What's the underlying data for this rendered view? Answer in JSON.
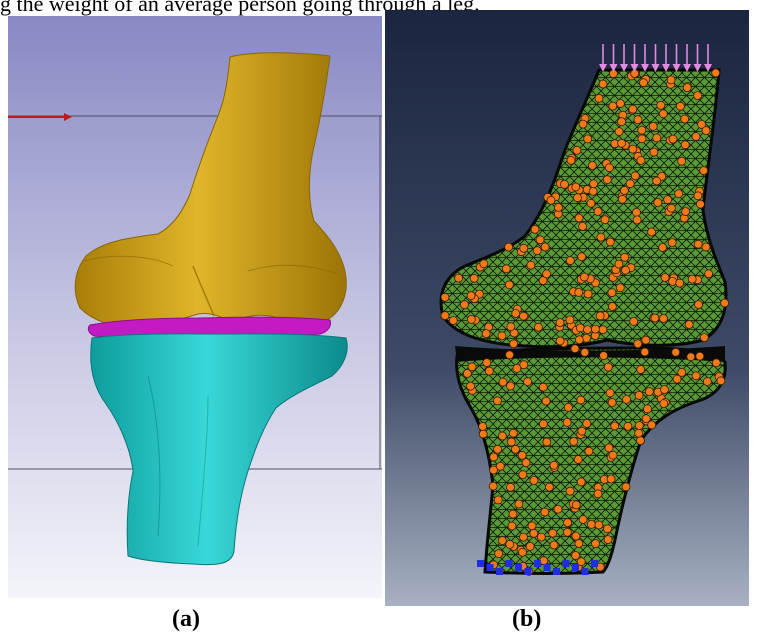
{
  "caption_top": "g the weight of an average person going through a leg.",
  "labels": {
    "a": "(a)",
    "b": "(b)"
  },
  "colors": {
    "panel_a_bg_top": "#8e8ec6",
    "panel_a_bg_bottom": "#f5f5fa",
    "femur": "#d4a712",
    "meniscus": "#c41ac4",
    "tibia": "#20c8c8",
    "panel_b_bg_top": "#1c2640",
    "panel_b_bg_bottom": "#a4aec0",
    "mesh": "#4f8f2c",
    "node": "#f07a18",
    "load_arrow": "#e08ae0",
    "boundary": "#1e2ee0",
    "axis_arrow": "#c41818"
  }
}
